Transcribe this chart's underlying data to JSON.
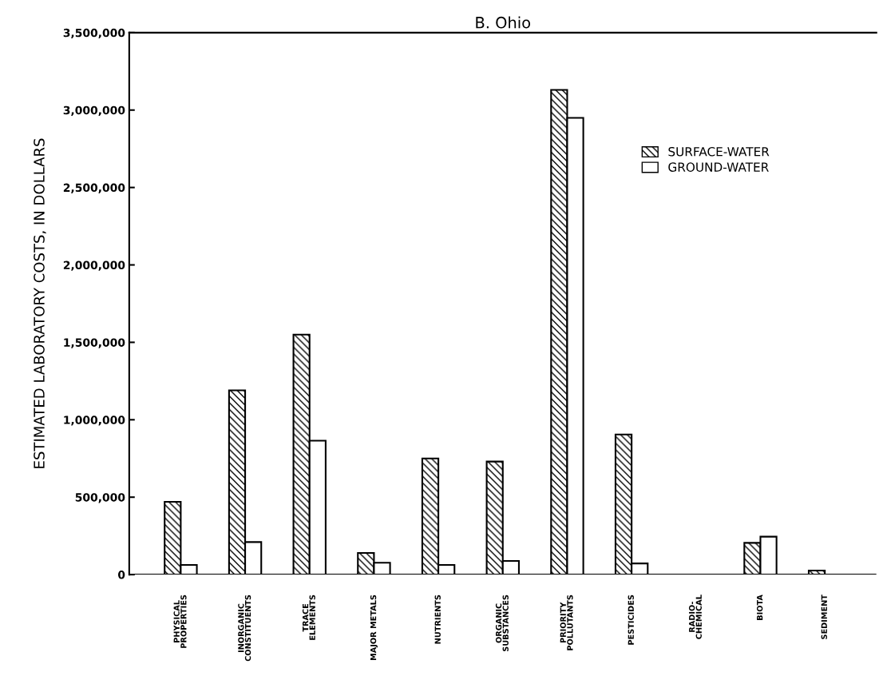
{
  "chart_data": {
    "type": "bar",
    "title": "B. Ohio",
    "ylabel": "ESTIMATED LABORATORY COSTS, IN DOLLARS",
    "categories": [
      "PHYSICAL\nPROPERTIES",
      "INORGANIC\nCONSTITUENTS",
      "TRACE\nELEMENTS",
      "MAJOR METALS",
      "NUTRIENTS",
      "ORGANIC\nSUBSTANCES",
      "PRIORITY\nPOLLUTANTS",
      "PESTICIDES",
      "RADIO-\nCHEMICAL",
      "BIOTA",
      "SEDIMENT"
    ],
    "series": [
      {
        "name": "SURFACE-WATER",
        "color": "#000000",
        "values": [
          470000,
          1190000,
          1550000,
          140000,
          750000,
          730000,
          3130000,
          905000,
          null,
          205000,
          26000
        ]
      },
      {
        "name": "GROUND-WATER",
        "color": "#ffffff",
        "values": [
          62000,
          210000,
          865000,
          77000,
          62000,
          88000,
          2950000,
          72000,
          null,
          245000,
          null
        ]
      }
    ],
    "ylim": [
      0,
      3500000
    ],
    "yticks": [
      {
        "value": 0,
        "label": "0"
      },
      {
        "value": 500000,
        "label": "500,000"
      },
      {
        "value": 1000000,
        "label": "1,000,000"
      },
      {
        "value": 1500000,
        "label": "1,500,000"
      },
      {
        "value": 2000000,
        "label": "2,000,000"
      },
      {
        "value": 2500000,
        "label": "2,500,000"
      },
      {
        "value": 3000000,
        "label": "3,000,000"
      },
      {
        "value": 3500000,
        "label": "3,500,000"
      }
    ],
    "grid": false,
    "legend": "top right"
  }
}
